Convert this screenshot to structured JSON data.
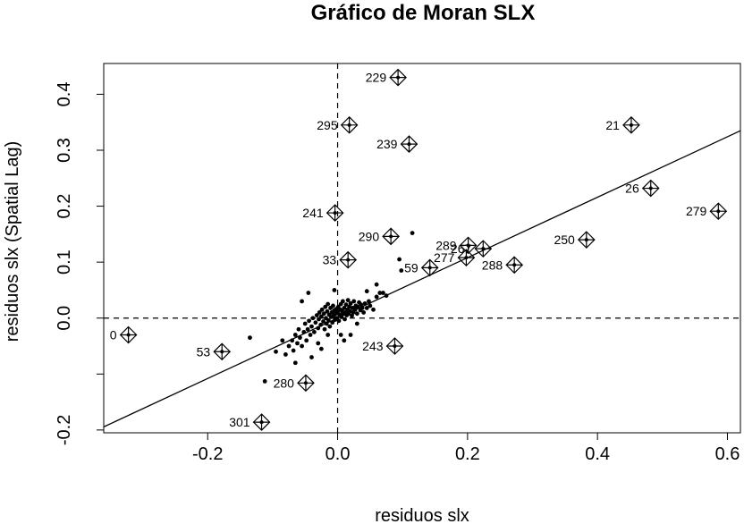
{
  "chart_data": {
    "type": "scatter",
    "title": "Gráfico de Moran SLX",
    "xlabel": "residuos slx",
    "ylabel": "residuos slx (Spatial Lag)",
    "xlim": [
      -0.36,
      0.62
    ],
    "ylim": [
      -0.205,
      0.455
    ],
    "xticks": [
      -0.2,
      0.0,
      0.2,
      0.4,
      0.6
    ],
    "xtick_labels": [
      "-0.2",
      "0.0",
      "0.2",
      "0.4",
      "0.6"
    ],
    "yticks": [
      -0.2,
      -0.1,
      0.0,
      0.1,
      0.2,
      0.3,
      0.4
    ],
    "ytick_labels": [
      "-0.2",
      "",
      "0.0",
      "0.1",
      "0.2",
      "0.3",
      "0.4"
    ],
    "regression_line": {
      "slope": 0.54,
      "intercept": 0.0
    },
    "reference_lines": {
      "x": 0.0,
      "y": 0.0
    },
    "influential_points": [
      {
        "label": "229",
        "x": 0.093,
        "y": 0.43
      },
      {
        "label": "295",
        "x": 0.018,
        "y": 0.345
      },
      {
        "label": "239",
        "x": 0.11,
        "y": 0.311
      },
      {
        "label": "21",
        "x": 0.452,
        "y": 0.345
      },
      {
        "label": "26",
        "x": 0.482,
        "y": 0.232
      },
      {
        "label": "279",
        "x": 0.586,
        "y": 0.191
      },
      {
        "label": "241",
        "x": -0.004,
        "y": 0.188
      },
      {
        "label": "290",
        "x": 0.082,
        "y": 0.146
      },
      {
        "label": "250",
        "x": 0.383,
        "y": 0.14
      },
      {
        "label": "289",
        "x": 0.201,
        "y": 0.13
      },
      {
        "label": "267",
        "x": 0.224,
        "y": 0.124
      },
      {
        "label": "277",
        "x": 0.198,
        "y": 0.108
      },
      {
        "label": "33",
        "x": 0.016,
        "y": 0.104
      },
      {
        "label": "59",
        "x": 0.142,
        "y": 0.09
      },
      {
        "label": "288",
        "x": 0.272,
        "y": 0.095
      },
      {
        "label": "0",
        "x": -0.322,
        "y": -0.03
      },
      {
        "label": "53",
        "x": -0.178,
        "y": -0.06
      },
      {
        "label": "243",
        "x": 0.088,
        "y": -0.05
      },
      {
        "label": "280",
        "x": -0.049,
        "y": -0.116
      },
      {
        "label": "301",
        "x": -0.117,
        "y": -0.186
      }
    ],
    "points": [
      [
        -0.112,
        -0.113
      ],
      [
        -0.095,
        -0.06
      ],
      [
        -0.085,
        -0.04
      ],
      [
        -0.08,
        -0.065
      ],
      [
        -0.075,
        -0.05
      ],
      [
        -0.07,
        -0.04
      ],
      [
        -0.068,
        -0.058
      ],
      [
        -0.065,
        -0.03
      ],
      [
        -0.062,
        -0.045
      ],
      [
        -0.06,
        -0.02
      ],
      [
        -0.058,
        -0.035
      ],
      [
        -0.055,
        -0.05
      ],
      [
        -0.052,
        -0.025
      ],
      [
        -0.05,
        -0.01
      ],
      [
        -0.048,
        -0.04
      ],
      [
        -0.046,
        -0.02
      ],
      [
        -0.044,
        -0.005
      ],
      [
        -0.042,
        -0.03
      ],
      [
        -0.04,
        -0.015
      ],
      [
        -0.038,
        0.0
      ],
      [
        -0.036,
        -0.025
      ],
      [
        -0.034,
        -0.008
      ],
      [
        -0.032,
        0.005
      ],
      [
        -0.03,
        -0.018
      ],
      [
        -0.029,
        -0.002
      ],
      [
        -0.028,
        0.01
      ],
      [
        -0.026,
        -0.012
      ],
      [
        -0.025,
        0.003
      ],
      [
        -0.024,
        0.015
      ],
      [
        -0.022,
        -0.006
      ],
      [
        -0.021,
        0.008
      ],
      [
        -0.02,
        -0.02
      ],
      [
        -0.019,
        0.02
      ],
      [
        -0.018,
        0.0
      ],
      [
        -0.017,
        -0.01
      ],
      [
        -0.016,
        0.012
      ],
      [
        -0.015,
        0.025
      ],
      [
        -0.014,
        -0.004
      ],
      [
        -0.013,
        0.006
      ],
      [
        -0.012,
        -0.015
      ],
      [
        -0.011,
        0.018
      ],
      [
        -0.01,
        0.002
      ],
      [
        -0.009,
        0.01
      ],
      [
        -0.008,
        -0.008
      ],
      [
        -0.007,
        0.022
      ],
      [
        -0.006,
        0.004
      ],
      [
        -0.005,
        0.014
      ],
      [
        -0.004,
        -0.003
      ],
      [
        -0.003,
        0.008
      ],
      [
        -0.002,
        0.016
      ],
      [
        -0.001,
        0.0
      ],
      [
        0.0,
        0.01
      ],
      [
        0.001,
        0.02
      ],
      [
        0.002,
        -0.005
      ],
      [
        0.003,
        0.006
      ],
      [
        0.004,
        0.015
      ],
      [
        0.005,
        0.025
      ],
      [
        0.006,
        0.002
      ],
      [
        0.007,
        0.012
      ],
      [
        0.008,
        0.03
      ],
      [
        0.009,
        0.008
      ],
      [
        0.01,
        0.018
      ],
      [
        0.011,
        -0.002
      ],
      [
        0.012,
        0.01
      ],
      [
        0.013,
        0.024
      ],
      [
        0.014,
        0.005
      ],
      [
        0.015,
        0.015
      ],
      [
        0.016,
        0.032
      ],
      [
        0.017,
        0.008
      ],
      [
        0.018,
        0.02
      ],
      [
        0.019,
        0.012
      ],
      [
        0.02,
        0.026
      ],
      [
        0.022,
        0.004
      ],
      [
        0.023,
        0.018
      ],
      [
        0.024,
        0.01
      ],
      [
        0.025,
        0.03
      ],
      [
        0.027,
        0.015
      ],
      [
        0.028,
        0.022
      ],
      [
        0.03,
        0.008
      ],
      [
        0.031,
        0.02
      ],
      [
        0.033,
        0.028
      ],
      [
        0.035,
        0.014
      ],
      [
        0.036,
        0.024
      ],
      [
        0.038,
        0.018
      ],
      [
        0.04,
        0.01
      ],
      [
        0.042,
        0.026
      ],
      [
        0.045,
        0.018
      ],
      [
        0.048,
        0.03
      ],
      [
        0.05,
        0.022
      ],
      [
        0.055,
        0.015
      ],
      [
        0.06,
        0.038
      ],
      [
        0.065,
        0.045
      ],
      [
        0.07,
        0.045
      ],
      [
        0.075,
        0.04
      ],
      [
        -0.045,
        0.045
      ],
      [
        -0.055,
        0.03
      ],
      [
        -0.005,
        0.05
      ],
      [
        0.005,
        -0.03
      ],
      [
        -0.03,
        -0.045
      ],
      [
        0.01,
        -0.04
      ],
      [
        -0.065,
        -0.08
      ],
      [
        -0.04,
        -0.07
      ],
      [
        -0.135,
        -0.035
      ],
      [
        0.02,
        -0.03
      ],
      [
        0.095,
        0.105
      ],
      [
        0.098,
        0.085
      ],
      [
        0.115,
        0.152
      ],
      [
        0.06,
        0.06
      ],
      [
        0.045,
        0.048
      ],
      [
        -0.025,
        -0.055
      ],
      [
        -0.015,
        -0.03
      ],
      [
        0.03,
        -0.01
      ]
    ]
  }
}
